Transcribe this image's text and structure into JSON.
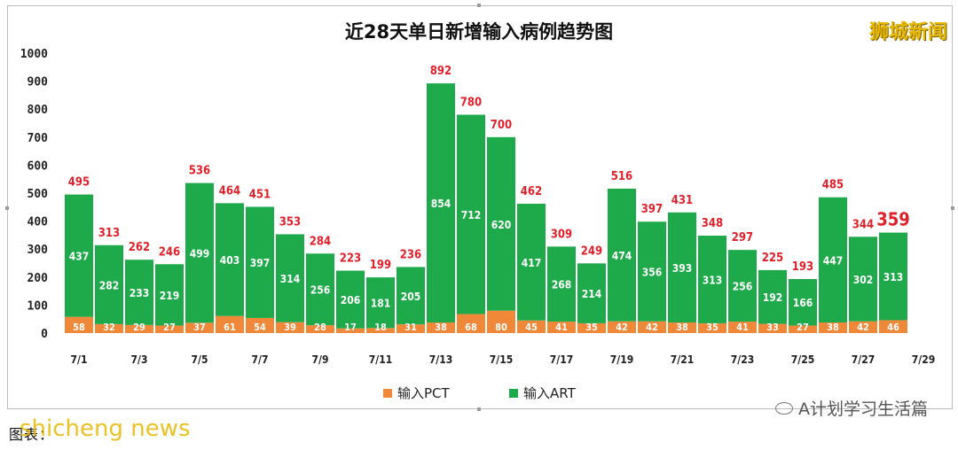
{
  "header": {
    "title": "近28天单日新增输入病例趋势图",
    "brand": "狮城新闻"
  },
  "legend": {
    "pct_label": "输入PCT",
    "art_label": "输入ART"
  },
  "watermark": {
    "wechat_text": "A计划学习生活篇"
  },
  "footer": {
    "note": "图表：",
    "overlay": "shicheng news"
  },
  "colors": {
    "pct": "#F0883A",
    "art": "#1EAA4A",
    "total_label": "#E0202A",
    "inner_label": "#ffffff"
  },
  "chart_data": {
    "type": "bar",
    "stacked": true,
    "title": "近28天单日新增输入病例趋势图",
    "ylim": [
      0,
      1000
    ],
    "yticks": [
      "0",
      "100",
      "200",
      "300",
      "400",
      "500",
      "600",
      "700",
      "800",
      "900",
      "1000"
    ],
    "grid": false,
    "legend_position": "bottom",
    "x_tick_labels": [
      "7/1",
      "7/3",
      "7/5",
      "7/7",
      "7/9",
      "7/11",
      "7/13",
      "7/15",
      "7/17",
      "7/19",
      "7/21",
      "7/23",
      "7/25",
      "7/27",
      "7/29"
    ],
    "categories": [
      "7/1",
      "7/2",
      "7/3",
      "7/4",
      "7/5",
      "7/6",
      "7/7",
      "7/8",
      "7/9",
      "7/10",
      "7/11",
      "7/12",
      "7/13",
      "7/14",
      "7/15",
      "7/16",
      "7/17",
      "7/18",
      "7/19",
      "7/20",
      "7/21",
      "7/22",
      "7/23",
      "7/24",
      "7/25",
      "7/26",
      "7/27",
      "7/28"
    ],
    "series": [
      {
        "name": "输入PCT",
        "values": [
          58,
          32,
          29,
          27,
          37,
          61,
          54,
          39,
          28,
          17,
          18,
          31,
          38,
          68,
          80,
          45,
          41,
          35,
          42,
          42,
          38,
          35,
          41,
          33,
          27,
          38,
          42,
          46
        ]
      },
      {
        "name": "输入ART",
        "values": [
          437,
          282,
          233,
          219,
          499,
          403,
          397,
          314,
          256,
          206,
          181,
          205,
          854,
          712,
          620,
          417,
          268,
          214,
          474,
          356,
          393,
          313,
          256,
          192,
          166,
          447,
          302,
          313
        ]
      }
    ],
    "totals": [
      495,
      313,
      262,
      246,
      536,
      464,
      451,
      353,
      284,
      223,
      199,
      236,
      892,
      780,
      700,
      462,
      309,
      249,
      516,
      397,
      431,
      348,
      297,
      225,
      193,
      485,
      344,
      359
    ],
    "highlight_last_total": true
  }
}
